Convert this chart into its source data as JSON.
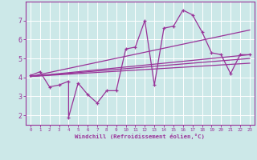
{
  "xlabel": "Windchill (Refroidissement éolien,°C)",
  "xlim": [
    -0.5,
    23.5
  ],
  "ylim": [
    1.5,
    8.0
  ],
  "yticks": [
    2,
    3,
    4,
    5,
    6,
    7
  ],
  "xticks": [
    0,
    1,
    2,
    3,
    4,
    5,
    6,
    7,
    8,
    9,
    10,
    11,
    12,
    13,
    14,
    15,
    16,
    17,
    18,
    19,
    20,
    21,
    22,
    23
  ],
  "bg_color": "#cce8e8",
  "line_color": "#993399",
  "grid_color": "#ffffff",
  "main_series_x": [
    0,
    1,
    2,
    3,
    4,
    4,
    5,
    6,
    7,
    8,
    9,
    10,
    11,
    12,
    13,
    14,
    15,
    16,
    17,
    18,
    19,
    20,
    21,
    22,
    23
  ],
  "main_series_y": [
    4.1,
    4.3,
    3.5,
    3.6,
    3.8,
    1.9,
    3.7,
    3.1,
    2.65,
    3.3,
    3.3,
    5.5,
    5.6,
    7.0,
    3.6,
    6.6,
    6.7,
    7.55,
    7.3,
    6.4,
    5.3,
    5.2,
    4.2,
    5.2,
    5.2
  ],
  "trend1_x": [
    0,
    23
  ],
  "trend1_y": [
    4.05,
    5.2
  ],
  "trend2_x": [
    0,
    23
  ],
  "trend2_y": [
    4.05,
    6.5
  ],
  "trend3_x": [
    0,
    23
  ],
  "trend3_y": [
    4.05,
    4.75
  ],
  "trend4_x": [
    0,
    23
  ],
  "trend4_y": [
    4.05,
    5.0
  ]
}
